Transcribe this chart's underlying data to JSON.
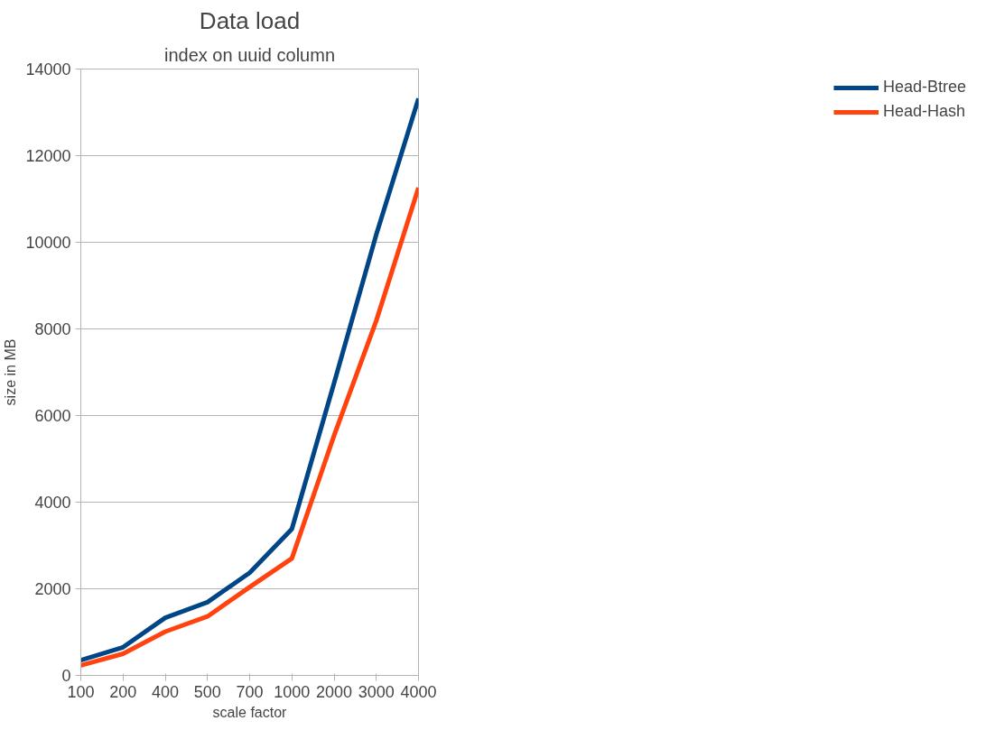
{
  "chart_data": {
    "type": "line",
    "title": "Data load",
    "subtitle": "index on uuid column",
    "xlabel": "scale factor",
    "ylabel": "size in MB",
    "categories": [
      "100",
      "200",
      "400",
      "500",
      "700",
      "1000",
      "2000",
      "3000",
      "4000"
    ],
    "ylim": [
      0,
      14000
    ],
    "yticks": [
      0,
      2000,
      4000,
      6000,
      8000,
      10000,
      12000,
      14000
    ],
    "grid": "y",
    "legend": "right",
    "line_style": "solid",
    "series": [
      {
        "name": "Head-Btree",
        "color": "#004586",
        "values": [
          350,
          650,
          1330,
          1690,
          2370,
          3380,
          6750,
          10180,
          13320
        ]
      },
      {
        "name": "Head-Hash",
        "color": "#ff420e",
        "values": [
          230,
          500,
          1010,
          1360,
          2040,
          2700,
          5540,
          8190,
          11260
        ]
      }
    ]
  }
}
